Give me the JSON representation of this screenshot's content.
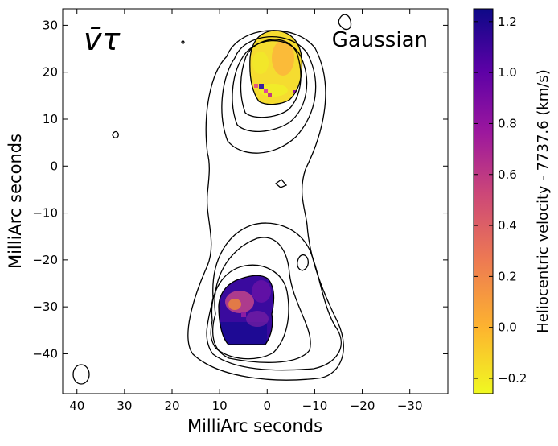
{
  "chart_data": {
    "type": "heatmap",
    "overlay": "contour",
    "symbol_label": "v̄τ",
    "method_label": "Gaussian",
    "xlabel": "MilliArc seconds",
    "ylabel": "MilliArc seconds",
    "x_axis_inverted": true,
    "xlim": [
      43,
      -38
    ],
    "ylim": [
      -48.5,
      33.5
    ],
    "x_ticks": [
      40,
      30,
      20,
      10,
      0,
      -10,
      -20,
      -30
    ],
    "x_tick_labels": [
      "40",
      "30",
      "20",
      "10",
      "0",
      "−10",
      "−20",
      "−30"
    ],
    "y_ticks": [
      30,
      20,
      10,
      0,
      -10,
      -20,
      -30,
      -40
    ],
    "y_tick_labels": [
      "30",
      "20",
      "10",
      "0",
      "−10",
      "−20",
      "−30",
      "−40"
    ],
    "colorbar": {
      "label": "Heliocentric velocity - 7737.6 (km/s)",
      "range": [
        -0.26,
        1.25
      ],
      "ticks": [
        1.2,
        1.0,
        0.8,
        0.6,
        0.4,
        0.2,
        0.0,
        -0.2
      ],
      "tick_labels": [
        "1.2",
        "1.0",
        "0.8",
        "0.6",
        "0.4",
        "0.2",
        "0.0",
        "−0.2"
      ],
      "colormap": [
        "#F0F921",
        "#FDB42F",
        "#ED7953",
        "#CC4778",
        "#9C179E",
        "#5C01A6",
        "#0D0887"
      ]
    },
    "regions": [
      {
        "name": "northern clump",
        "center": [
          -1,
          22
        ],
        "velocity_range": [
          -0.2,
          0.1
        ],
        "mean_velocity": -0.1
      },
      {
        "name": "southern clump",
        "center": [
          4,
          -33
        ],
        "velocity_range": [
          0.6,
          1.25
        ],
        "mean_velocity": 1.0
      }
    ],
    "beam": {
      "center": [
        40,
        -44
      ],
      "major_axis": 4,
      "minor_axis": 3
    }
  }
}
